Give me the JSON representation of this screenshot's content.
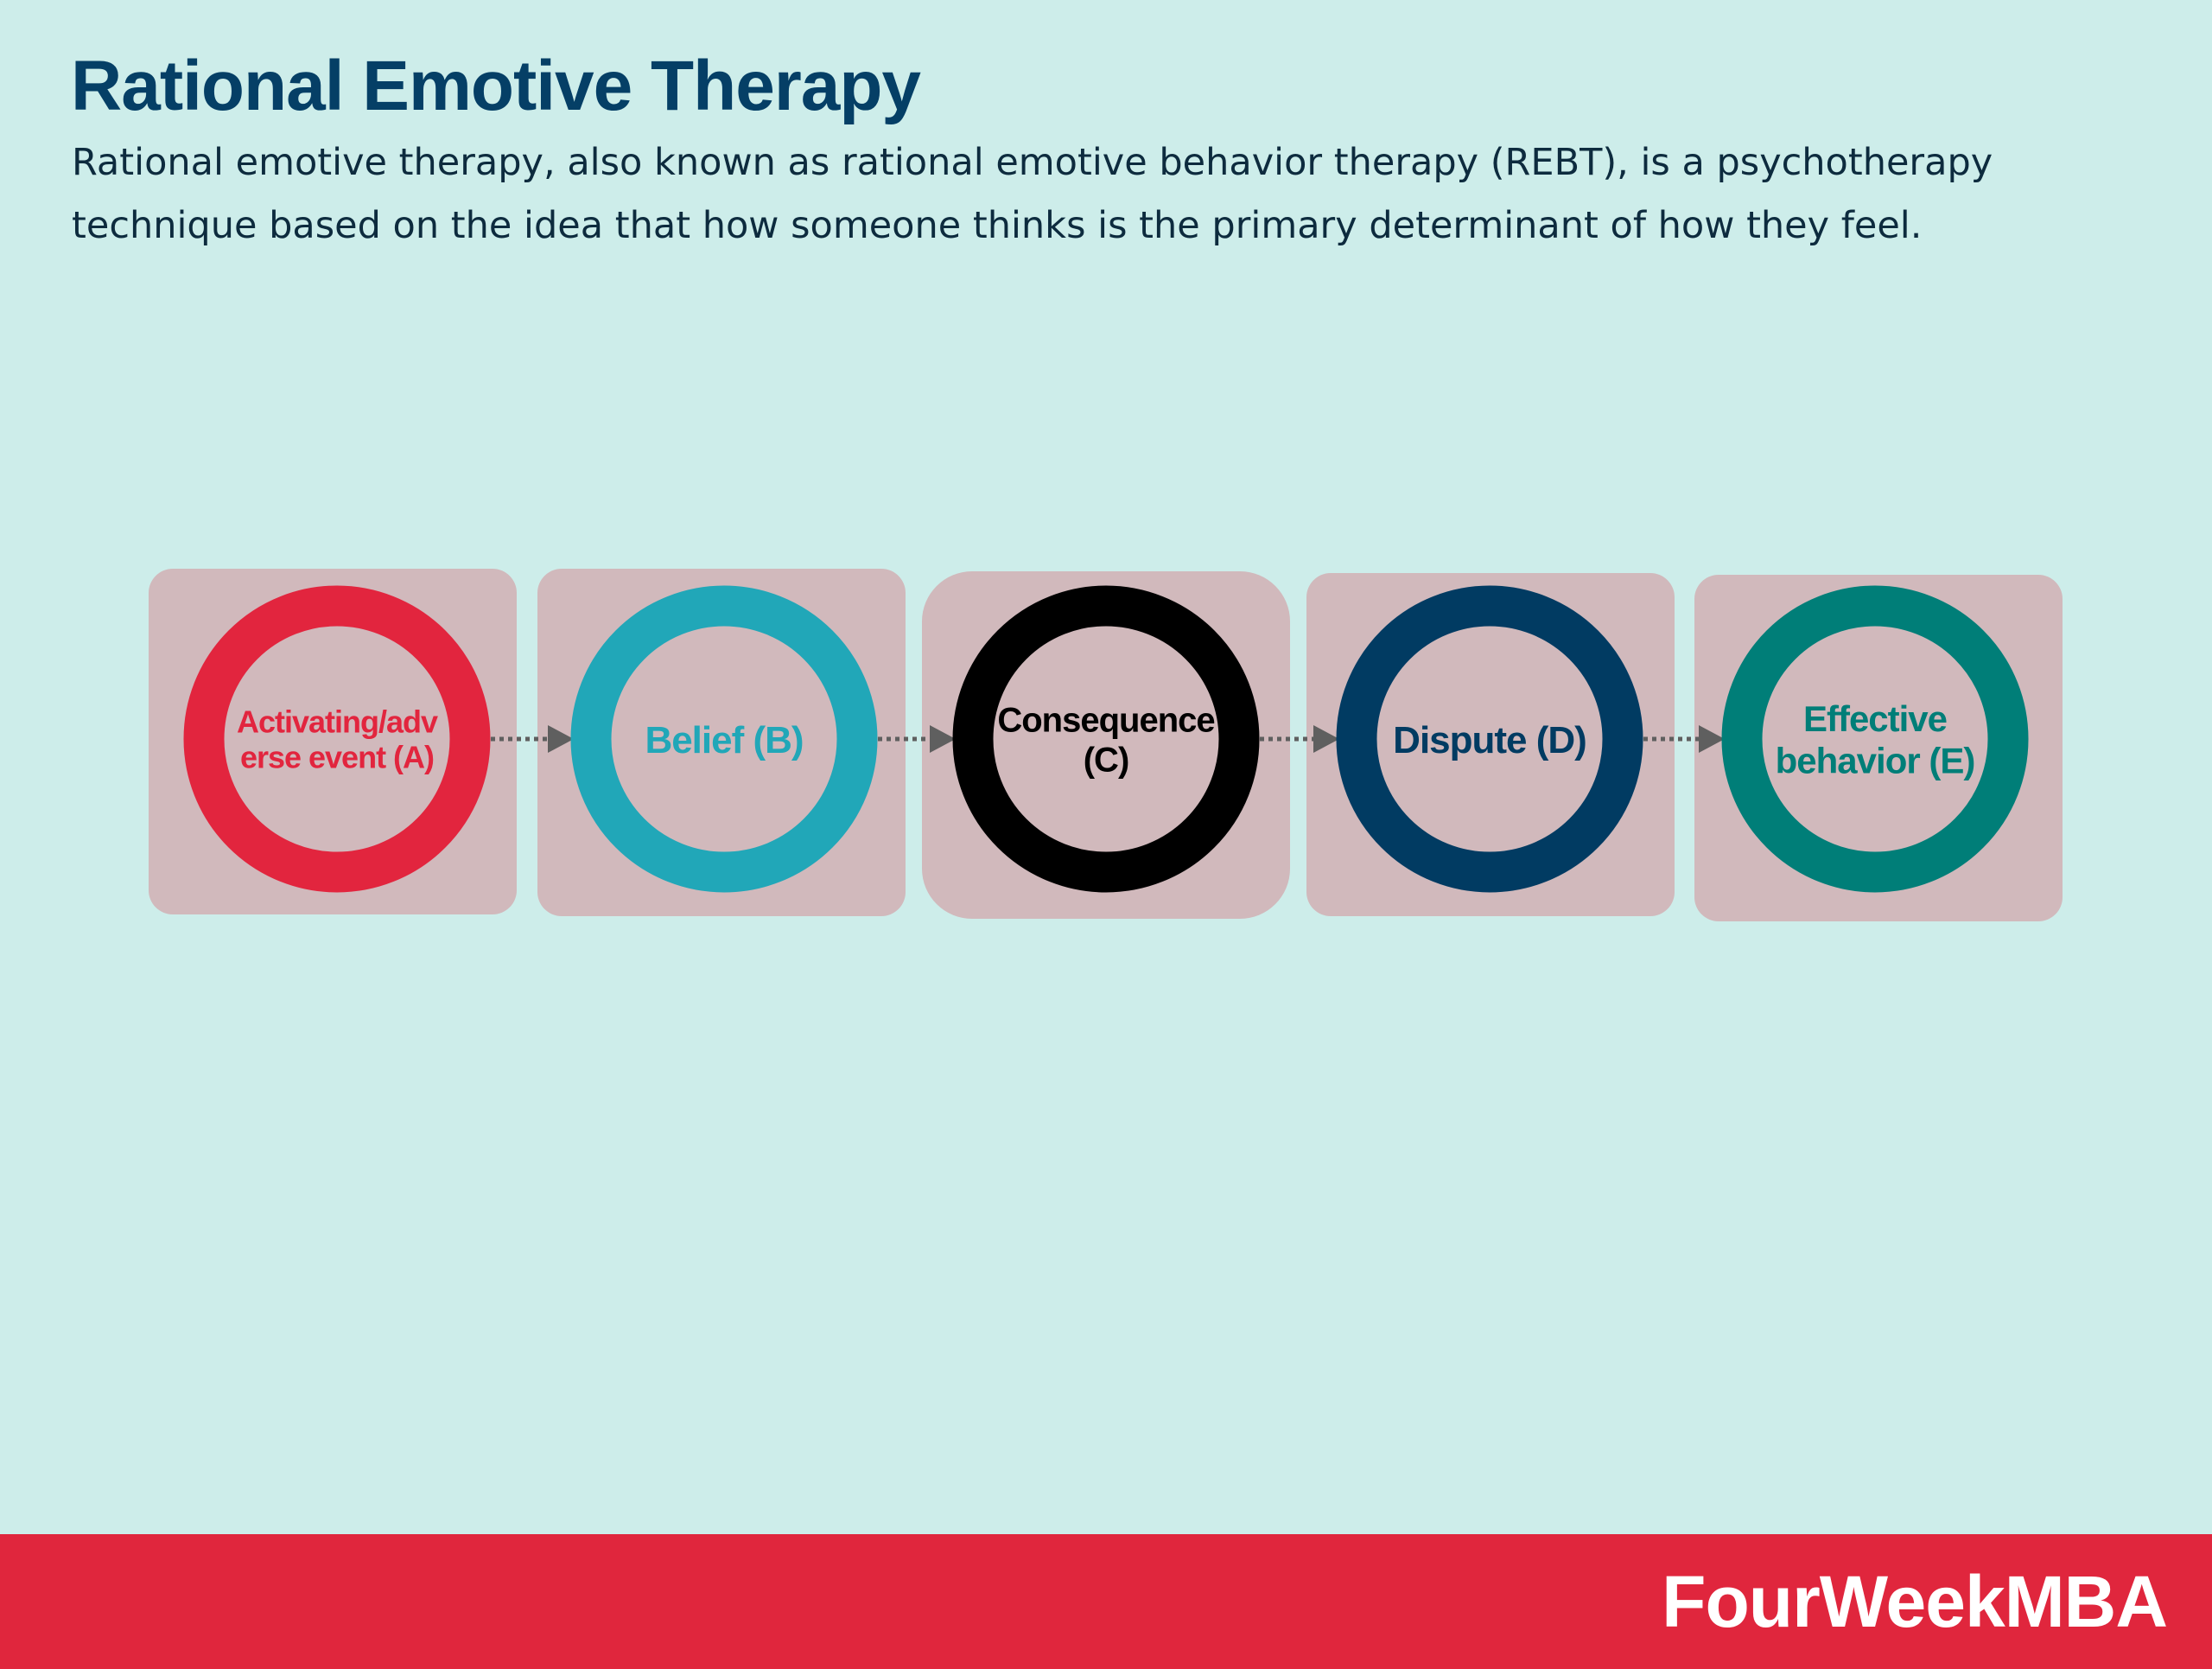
{
  "header": {
    "title": "Rational Emotive Therapy",
    "description": "Rational emotive therapy, also known as rational emotive behavior therapy (REBT), is a psychotherapy technique based on the idea that how someone thinks is the primary determinant of how they feel."
  },
  "steps": [
    {
      "lines": [
        "Activating/adv",
        "erse event (A)"
      ],
      "color": "#e2253e"
    },
    {
      "lines": [
        "Belief (B)"
      ],
      "color": "#21a7b8"
    },
    {
      "lines": [
        "Consequence",
        "(C)"
      ],
      "color": "#000000"
    },
    {
      "lines": [
        "Dispute (D)"
      ],
      "color": "#013b62"
    },
    {
      "lines": [
        "Effective",
        "behavior (E)"
      ],
      "color": "#007e78"
    }
  ],
  "colors": {
    "background": "#cdedea",
    "panel": "#d1b9bc",
    "connector": "#5f5f5f",
    "title": "#053f66",
    "footer": "#e0263d"
  },
  "footer": {
    "brand": "FourWeekMBA"
  }
}
